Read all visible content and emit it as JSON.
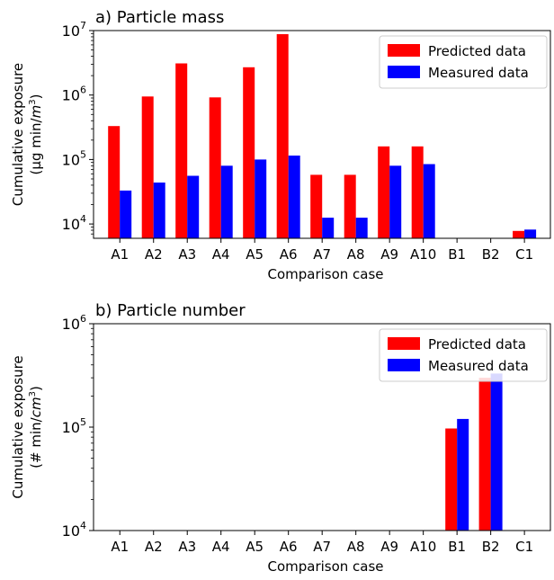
{
  "chart_data": [
    {
      "type": "bar",
      "title": "a) Particle mass",
      "xlabel": "Comparison case",
      "ylabel_line1": "Cumulative exposure",
      "ylabel_line2_prefix": "(μg min/",
      "ylabel_unit_italic": "m",
      "ylabel_unit_sup": "3",
      "ylabel_line2_suffix": ")",
      "yscale": "log",
      "ylim": [
        6000,
        10000000
      ],
      "yticks": [
        {
          "value": 10000,
          "base": "10",
          "exp": "4"
        },
        {
          "value": 100000,
          "base": "10",
          "exp": "5"
        },
        {
          "value": 1000000,
          "base": "10",
          "exp": "6"
        },
        {
          "value": 10000000,
          "base": "10",
          "exp": "7"
        }
      ],
      "categories": [
        "A1",
        "A2",
        "A3",
        "A4",
        "A5",
        "A6",
        "A7",
        "A8",
        "A9",
        "A10",
        "B1",
        "B2",
        "C1"
      ],
      "series": [
        {
          "name": "Predicted data",
          "color": "#ff0000",
          "values": [
            330000,
            950000,
            3100000,
            920000,
            2700000,
            8800000,
            58000,
            58000,
            160000,
            160000,
            null,
            null,
            7800
          ]
        },
        {
          "name": "Measured data",
          "color": "#0000ff",
          "values": [
            33000,
            44000,
            56000,
            80000,
            100000,
            115000,
            12500,
            12500,
            80000,
            85000,
            null,
            null,
            8200
          ]
        }
      ],
      "legend": "top-right",
      "grid": false
    },
    {
      "type": "bar",
      "title": "b) Particle number",
      "xlabel": "Comparison case",
      "ylabel_line1": "Cumulative exposure",
      "ylabel_line2_prefix": "(# min/",
      "ylabel_unit_italic": "cm",
      "ylabel_unit_sup": "3",
      "ylabel_line2_suffix": ")",
      "yscale": "log",
      "ylim": [
        10000,
        1000000
      ],
      "yticks": [
        {
          "value": 10000,
          "base": "10",
          "exp": "4"
        },
        {
          "value": 100000,
          "base": "10",
          "exp": "5"
        },
        {
          "value": 1000000,
          "base": "10",
          "exp": "6"
        }
      ],
      "categories": [
        "A1",
        "A2",
        "A3",
        "A4",
        "A5",
        "A6",
        "A7",
        "A8",
        "A9",
        "A10",
        "B1",
        "B2",
        "C1"
      ],
      "series": [
        {
          "name": "Predicted data",
          "color": "#ff0000",
          "values": [
            null,
            null,
            null,
            null,
            null,
            null,
            null,
            null,
            null,
            null,
            97000,
            300000,
            null
          ]
        },
        {
          "name": "Measured data",
          "color": "#0000ff",
          "values": [
            null,
            null,
            null,
            null,
            null,
            null,
            null,
            null,
            null,
            null,
            120000,
            330000,
            null
          ]
        }
      ],
      "legend": "top-right",
      "grid": false
    }
  ]
}
